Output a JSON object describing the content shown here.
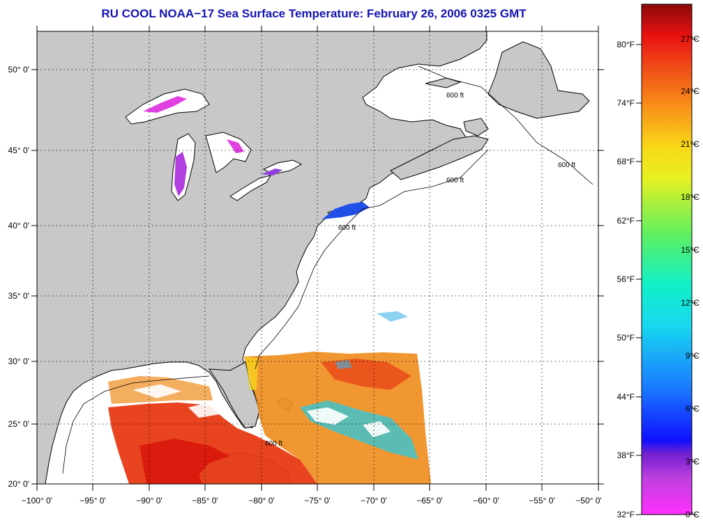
{
  "title": "RU COOL  NOAA−17  Sea Surface Temperature:  February 26, 2006 0325 GMT",
  "lon_labels": [
    "−100° 0'",
    "−95° 0'",
    "−90° 0'",
    "−85° 0'",
    "−80° 0'",
    "−75° 0'",
    "−70° 0'",
    "−65° 0'",
    "−60° 0'",
    "−55° 0'",
    "−50° 0'"
  ],
  "lat_labels": [
    "50° 0'",
    "45° 0'",
    "40° 0'",
    "35° 0'",
    "30° 0'",
    "25° 0'",
    "20° 0'"
  ],
  "depth_contour_label": "600 ft",
  "colorbar": {
    "fahrenheit_labels": [
      "80°F",
      "74°F",
      "68°F",
      "62°F",
      "56°F",
      "50°F",
      "44°F",
      "38°F",
      "32°F"
    ],
    "celsius_labels": [
      "27°C",
      "24°C",
      "21°C",
      "18°C",
      "15°C",
      "12°C",
      "9°C",
      "6°C",
      "3°C",
      "0°C"
    ]
  },
  "colors": {
    "land": "#c8c8c8",
    "ocean": "#ffffff",
    "title": "#1414b4",
    "warm": "#e83a14",
    "hot": "#d8140c",
    "mid": "#f08c1c",
    "cool": "#28c8e0",
    "cold": "#2050e8",
    "ice": "#e040e0"
  }
}
